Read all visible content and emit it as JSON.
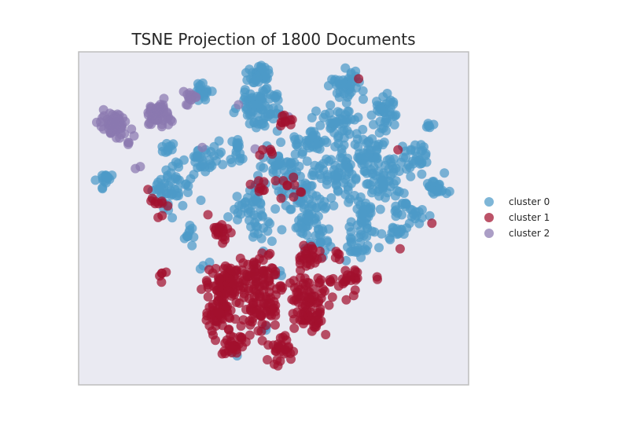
{
  "chart_data": {
    "type": "scatter",
    "title": "TSNE Projection of 1800 Documents",
    "xlabel": "",
    "ylabel": "",
    "axes_ticks": "hidden",
    "grid": false,
    "legend_position": "right",
    "background_color": "#eaeaf2",
    "series": [
      {
        "name": "cluster 0",
        "color": "#4c9ac7",
        "approx_count": 1000,
        "regions": [
          {
            "x": 330,
            "y": 95,
            "spread": 10,
            "n": 40
          },
          {
            "x": 330,
            "y": 135,
            "spread": 22,
            "n": 75
          },
          {
            "x": 258,
            "y": 118,
            "spread": 10,
            "n": 20
          },
          {
            "x": 440,
            "y": 110,
            "spread": 16,
            "n": 40
          },
          {
            "x": 490,
            "y": 138,
            "spread": 14,
            "n": 35
          },
          {
            "x": 430,
            "y": 160,
            "spread": 18,
            "n": 40
          },
          {
            "x": 397,
            "y": 180,
            "spread": 16,
            "n": 30
          },
          {
            "x": 470,
            "y": 195,
            "spread": 30,
            "n": 70
          },
          {
            "x": 530,
            "y": 200,
            "spread": 14,
            "n": 25
          },
          {
            "x": 545,
            "y": 160,
            "spread": 5,
            "n": 6
          },
          {
            "x": 260,
            "y": 200,
            "spread": 16,
            "n": 30
          },
          {
            "x": 300,
            "y": 195,
            "spread": 14,
            "n": 20
          },
          {
            "x": 215,
            "y": 188,
            "spread": 8,
            "n": 10
          },
          {
            "x": 215,
            "y": 240,
            "spread": 20,
            "n": 50
          },
          {
            "x": 133,
            "y": 225,
            "spread": 8,
            "n": 15
          },
          {
            "x": 360,
            "y": 215,
            "spread": 30,
            "n": 60
          },
          {
            "x": 430,
            "y": 225,
            "spread": 28,
            "n": 55
          },
          {
            "x": 490,
            "y": 230,
            "spread": 22,
            "n": 45
          },
          {
            "x": 555,
            "y": 240,
            "spread": 14,
            "n": 25
          },
          {
            "x": 320,
            "y": 260,
            "spread": 18,
            "n": 35
          },
          {
            "x": 390,
            "y": 265,
            "spread": 25,
            "n": 50
          },
          {
            "x": 460,
            "y": 268,
            "spread": 18,
            "n": 30
          },
          {
            "x": 510,
            "y": 265,
            "spread": 12,
            "n": 15
          },
          {
            "x": 240,
            "y": 298,
            "spread": 8,
            "n": 10
          },
          {
            "x": 335,
            "y": 295,
            "spread": 14,
            "n": 15
          },
          {
            "x": 400,
            "y": 295,
            "spread": 20,
            "n": 30
          },
          {
            "x": 460,
            "y": 300,
            "spread": 16,
            "n": 20
          },
          {
            "x": 505,
            "y": 295,
            "spread": 10,
            "n": 15
          },
          {
            "x": 455,
            "y": 320,
            "spread": 12,
            "n": 15
          },
          {
            "x": 530,
            "y": 275,
            "spread": 10,
            "n": 10
          },
          {
            "x": 260,
            "y": 338,
            "spread": 5,
            "n": 3
          },
          {
            "x": 355,
            "y": 350,
            "spread": 5,
            "n": 3
          },
          {
            "x": 340,
            "y": 422,
            "spread": 5,
            "n": 3
          },
          {
            "x": 300,
            "y": 448,
            "spread": 4,
            "n": 2
          }
        ]
      },
      {
        "name": "cluster 1",
        "color": "#a2102e",
        "approx_count": 600,
        "regions": [
          {
            "x": 290,
            "y": 360,
            "spread": 20,
            "n": 80
          },
          {
            "x": 280,
            "y": 395,
            "spread": 18,
            "n": 60
          },
          {
            "x": 330,
            "y": 350,
            "spread": 22,
            "n": 60
          },
          {
            "x": 335,
            "y": 395,
            "spread": 22,
            "n": 60
          },
          {
            "x": 390,
            "y": 375,
            "spread": 20,
            "n": 60
          },
          {
            "x": 395,
            "y": 405,
            "spread": 16,
            "n": 35
          },
          {
            "x": 440,
            "y": 355,
            "spread": 14,
            "n": 25
          },
          {
            "x": 395,
            "y": 325,
            "spread": 16,
            "n": 25
          },
          {
            "x": 300,
            "y": 440,
            "spread": 14,
            "n": 30
          },
          {
            "x": 355,
            "y": 445,
            "spread": 14,
            "n": 30
          },
          {
            "x": 280,
            "y": 295,
            "spread": 12,
            "n": 20
          },
          {
            "x": 200,
            "y": 260,
            "spread": 10,
            "n": 10
          },
          {
            "x": 205,
            "y": 350,
            "spread": 5,
            "n": 5
          },
          {
            "x": 330,
            "y": 238,
            "spread": 10,
            "n": 8
          },
          {
            "x": 365,
            "y": 238,
            "spread": 14,
            "n": 10
          },
          {
            "x": 365,
            "y": 155,
            "spread": 10,
            "n": 10
          },
          {
            "x": 345,
            "y": 195,
            "spread": 10,
            "n": 5
          },
          {
            "x": 430,
            "y": 325,
            "spread": 8,
            "n": 5
          },
          {
            "x": 480,
            "y": 355,
            "spread": 3,
            "n": 2
          },
          {
            "x": 455,
            "y": 100,
            "spread": 2,
            "n": 1
          },
          {
            "x": 503,
            "y": 190,
            "spread": 2,
            "n": 1
          },
          {
            "x": 548,
            "y": 283,
            "spread": 2,
            "n": 1
          },
          {
            "x": 508,
            "y": 315,
            "spread": 2,
            "n": 1
          },
          {
            "x": 190,
            "y": 242,
            "spread": 2,
            "n": 1
          }
        ]
      },
      {
        "name": "cluster 2",
        "color": "#8a79b0",
        "approx_count": 200,
        "regions": [
          {
            "x": 145,
            "y": 160,
            "spread": 14,
            "n": 70
          },
          {
            "x": 200,
            "y": 145,
            "spread": 13,
            "n": 55
          },
          {
            "x": 245,
            "y": 123,
            "spread": 8,
            "n": 15
          },
          {
            "x": 163,
            "y": 183,
            "spread": 3,
            "n": 3
          },
          {
            "x": 175,
            "y": 213,
            "spread": 3,
            "n": 2
          },
          {
            "x": 305,
            "y": 133,
            "spread": 2,
            "n": 1
          },
          {
            "x": 322,
            "y": 192,
            "spread": 2,
            "n": 1
          },
          {
            "x": 257,
            "y": 190,
            "spread": 2,
            "n": 1
          },
          {
            "x": 342,
            "y": 193,
            "spread": 2,
            "n": 1
          },
          {
            "x": 366,
            "y": 150,
            "spread": 2,
            "n": 1
          }
        ]
      }
    ]
  }
}
